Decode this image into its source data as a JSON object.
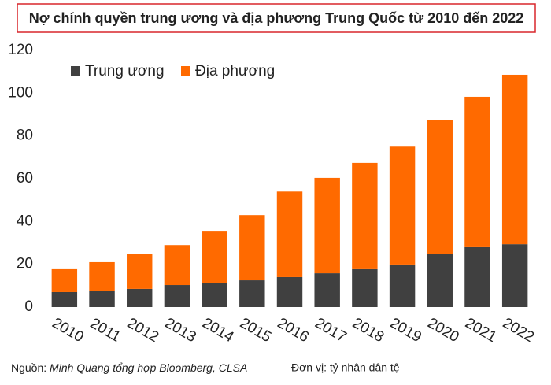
{
  "chart_data": {
    "type": "stacked_bar",
    "title": "Nợ chính quyền trung ương và địa phương Trung Quốc từ 2010 đến 2022",
    "categories": [
      "2010",
      "2011",
      "2012",
      "2013",
      "2014",
      "2015",
      "2016",
      "2017",
      "2018",
      "2019",
      "2020",
      "2021",
      "2022"
    ],
    "series": [
      {
        "name": "Trung ương",
        "color": "#404040",
        "values": [
          7,
          7.7,
          8.5,
          10.3,
          11.4,
          12.5,
          14,
          15.8,
          17.7,
          19.9,
          24.7,
          28,
          29.4
        ]
      },
      {
        "name": "Địa phương",
        "color": "#ff6a00",
        "values": [
          10.7,
          13.3,
          16.2,
          18.7,
          23.9,
          30.5,
          40,
          44.6,
          49.7,
          55.1,
          62.9,
          70.3,
          79.2
        ]
      }
    ],
    "ylim": [
      0,
      120
    ],
    "yticks": [
      0,
      20,
      40,
      60,
      80,
      100,
      120
    ],
    "grid": false,
    "legend": "top-left",
    "source_label": "Nguồn:",
    "source": "Minh Quang tổng hợp Bloomberg, CLSA",
    "unit_note": "Đơn vị: tỷ nhân dân tệ"
  }
}
